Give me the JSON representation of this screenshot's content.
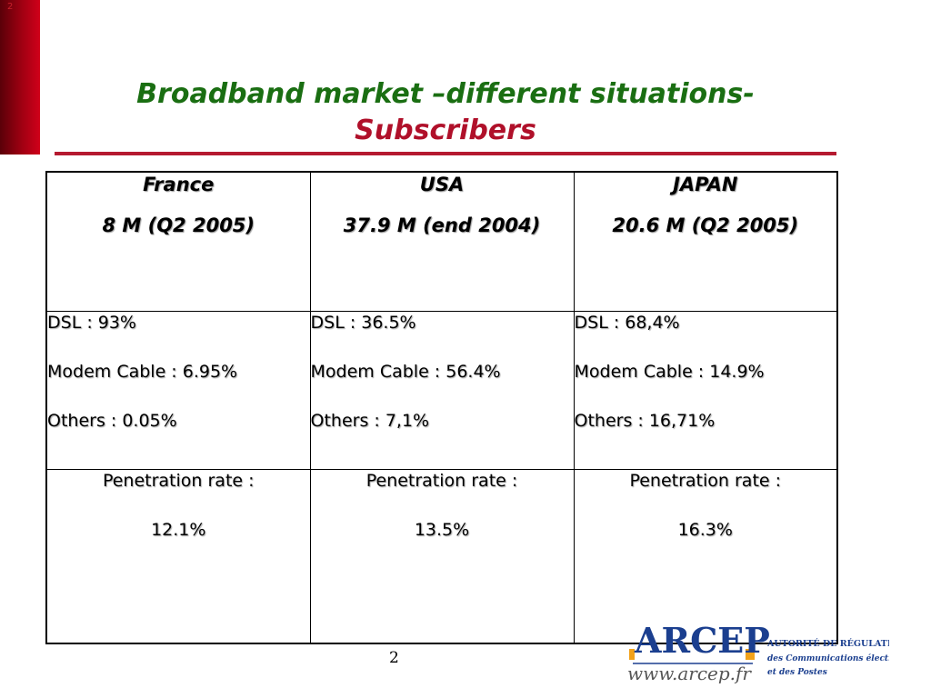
{
  "slide": {
    "corner_number": "2",
    "title_line1": "Broadband market –different situations-",
    "title_line2": "Subscribers",
    "page_number": "2"
  },
  "table": {
    "countries": [
      {
        "name": "France",
        "subscribers": "8 M (Q2 2005)",
        "mix": [
          "DSL : 93%",
          "Modem Cable : 6.95%",
          "Others : 0.05%"
        ],
        "penetration_label": "Penetration rate :",
        "penetration_value": "12.1%"
      },
      {
        "name": "USA",
        "subscribers": "37.9 M (end 2004)",
        "mix": [
          "DSL : 36.5%",
          "Modem Cable : 56.4%",
          "Others : 7,1%"
        ],
        "penetration_label": "Penetration rate :",
        "penetration_value": "13.5%"
      },
      {
        "name": "JAPAN",
        "subscribers": "20.6 M (Q2 2005)",
        "mix": [
          "DSL : 68,4%",
          "Modem Cable : 14.9%",
          "Others : 16,71%"
        ],
        "penetration_label": "Penetration rate :",
        "penetration_value": "16.3%"
      }
    ]
  },
  "logo": {
    "brand": "ARCEP",
    "url": "www.arcep.fr",
    "authority_line1": "AUTORITÉ DE RÉGULATION",
    "authority_line2": "des Communications électroniques",
    "authority_line3": "et des Postes",
    "brand_color": "#1b3f8f",
    "accent_color": "#f2a21a"
  }
}
